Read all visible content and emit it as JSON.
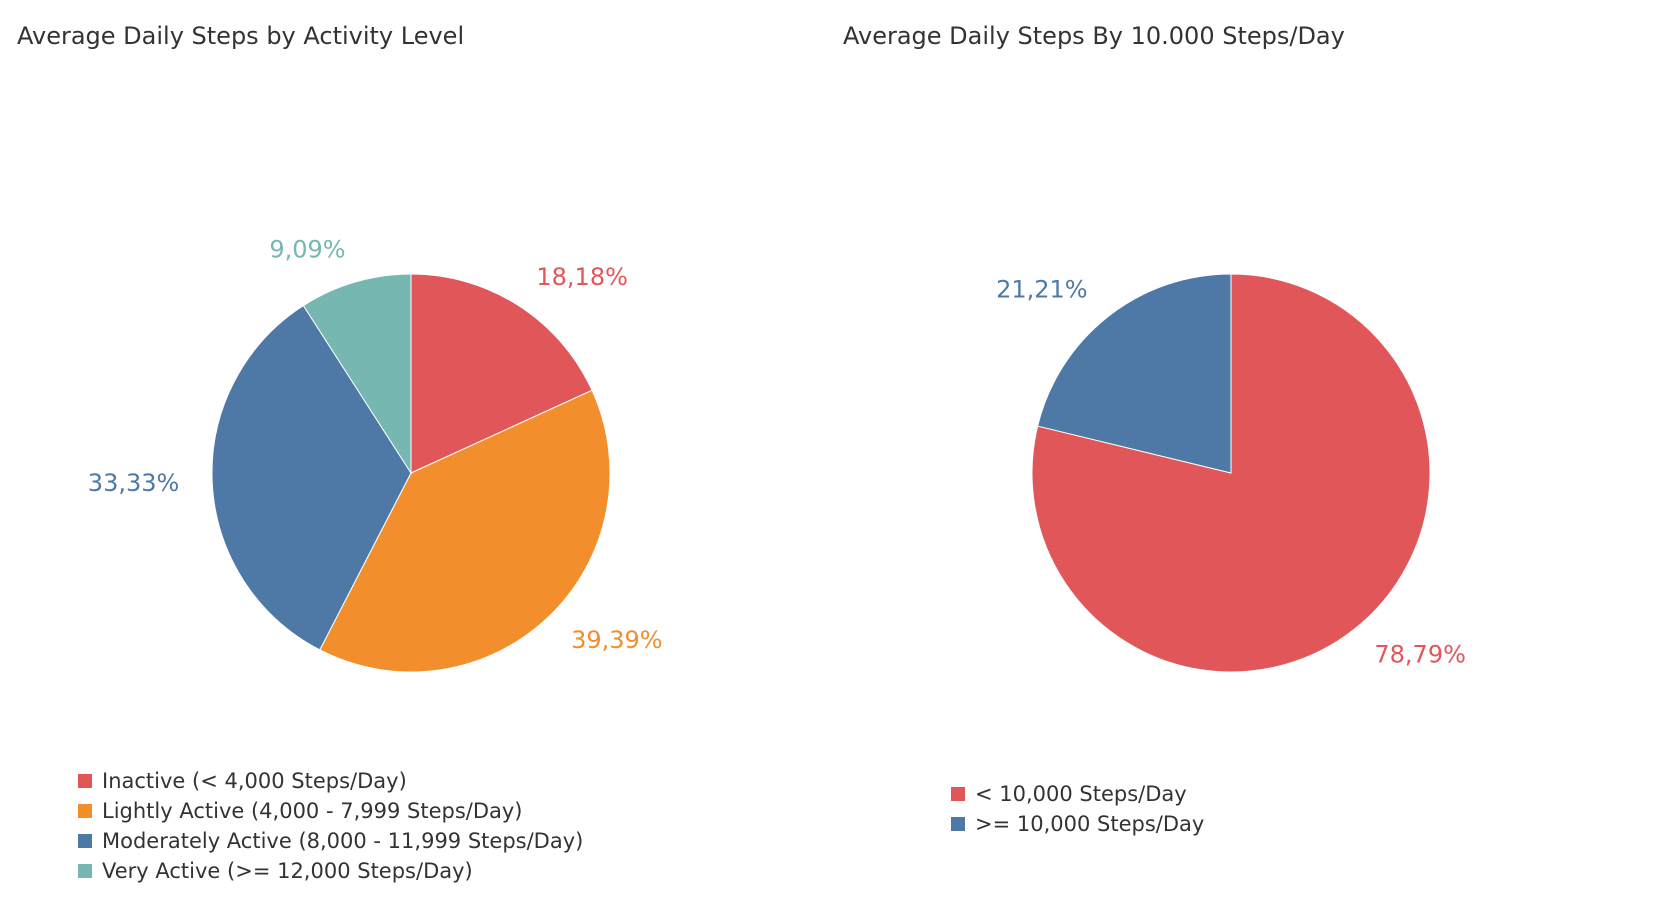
{
  "chart_data": [
    {
      "type": "pie",
      "title": "Average Daily Steps by Activity Level",
      "slices": [
        {
          "label": "Inactive (< 4,000 Steps/Day)",
          "value": 18.18,
          "display": "18,18%",
          "color": "#E15759"
        },
        {
          "label": "Lightly Active (4,000 - 7,999 Steps/Day)",
          "value": 39.39,
          "display": "39,39%",
          "color": "#F28E2B"
        },
        {
          "label": "Moderately Active (8,000 - 11,999 Steps/Day)",
          "value": 33.33,
          "display": "33,33%",
          "color": "#4E79A7"
        },
        {
          "label": "Very Active (>= 12,000 Steps/Day)",
          "value": 9.09,
          "display": "9,09%",
          "color": "#76B7B2"
        }
      ],
      "start_angle": "12 o'clock",
      "direction": "clockwise",
      "legend": "bottom-left"
    },
    {
      "type": "pie",
      "title": "Average Daily Steps By 10.000 Steps/Day",
      "slices": [
        {
          "label": "< 10,000 Steps/Day",
          "value": 78.79,
          "display": "78,79%",
          "color": "#E15759"
        },
        {
          "label": ">= 10,000 Steps/Day",
          "value": 21.21,
          "display": "21,21%",
          "color": "#4E79A7"
        }
      ],
      "start_angle": "12 o'clock",
      "direction": "clockwise",
      "legend": "bottom-left"
    }
  ]
}
